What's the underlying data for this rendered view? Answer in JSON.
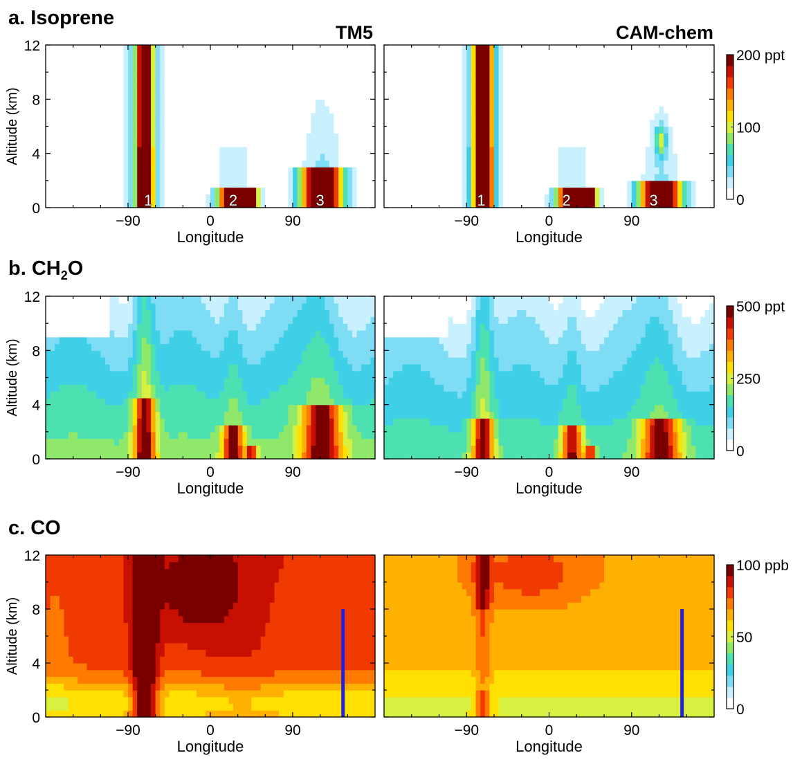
{
  "figure": {
    "panel_titles": [
      "a. Isoprene",
      "b. CH",
      "c. CO"
    ],
    "ch2o_sub": "2",
    "ch2o_tail": "O",
    "model_labels": [
      "TM5",
      "CAM-chem"
    ],
    "ylabel": "Altitude (km)",
    "xlabel": "Longitude"
  },
  "chart_data": [
    {
      "type": "heatmap",
      "title": "a. Isoprene",
      "species": "isoprene",
      "xlabel": "Longitude",
      "ylabel": "Altitude (km)",
      "xlim": [
        -180,
        180
      ],
      "ylim": [
        0,
        12
      ],
      "xticks": [
        -90,
        0,
        90
      ],
      "yticks": [
        0,
        4,
        8,
        12
      ],
      "models": [
        "TM5",
        "CAM-chem"
      ],
      "colorbar": {
        "min": 0,
        "max": 200,
        "ticks": [
          0,
          100,
          200
        ],
        "tick_labels": [
          "0",
          "100",
          "200 ppt"
        ],
        "unit": "ppt"
      },
      "region_labels": [
        {
          "text": "1",
          "lon": -68,
          "alt": 0.3
        },
        {
          "text": "2",
          "lon": 25,
          "alt": 0.3
        },
        {
          "text": "3",
          "lon": 120,
          "alt": 0.3
        }
      ],
      "vertical_markers": []
    },
    {
      "type": "heatmap",
      "title": "b. CH2O",
      "species": "ch2o",
      "xlabel": "Longitude",
      "ylabel": "Altitude (km)",
      "xlim": [
        -180,
        180
      ],
      "ylim": [
        0,
        12
      ],
      "xticks": [
        -90,
        0,
        90
      ],
      "yticks": [
        0,
        4,
        8,
        12
      ],
      "models": [
        "TM5",
        "CAM-chem"
      ],
      "colorbar": {
        "min": 0,
        "max": 500,
        "ticks": [
          0,
          250,
          500
        ],
        "tick_labels": [
          "0",
          "250",
          "500 ppt"
        ],
        "unit": "ppt"
      },
      "region_labels": [],
      "vertical_markers": []
    },
    {
      "type": "heatmap",
      "title": "c. CO",
      "species": "co",
      "xlabel": "Longitude",
      "ylabel": "Altitude (km)",
      "xlim": [
        -180,
        180
      ],
      "ylim": [
        0,
        12
      ],
      "xticks": [
        -90,
        0,
        90
      ],
      "yticks": [
        0,
        4,
        8,
        12
      ],
      "models": [
        "TM5",
        "CAM-chem"
      ],
      "colorbar": {
        "min": 0,
        "max": 100,
        "ticks": [
          0,
          50,
          100
        ],
        "tick_labels": [
          "0",
          "50",
          "100 ppb"
        ],
        "unit": "ppb"
      },
      "region_labels": [],
      "vertical_markers": [
        {
          "lon": 145,
          "alt_from": 0,
          "alt_to": 8,
          "color": "#2222dd"
        }
      ]
    }
  ],
  "colormap": [
    "#ffffff",
    "#c8f0ff",
    "#7fdcf5",
    "#3fcfe6",
    "#4de0b0",
    "#8fe86a",
    "#d8f040",
    "#ffe000",
    "#ffb000",
    "#ff7a00",
    "#f03a00",
    "#c81000",
    "#7a0000"
  ]
}
